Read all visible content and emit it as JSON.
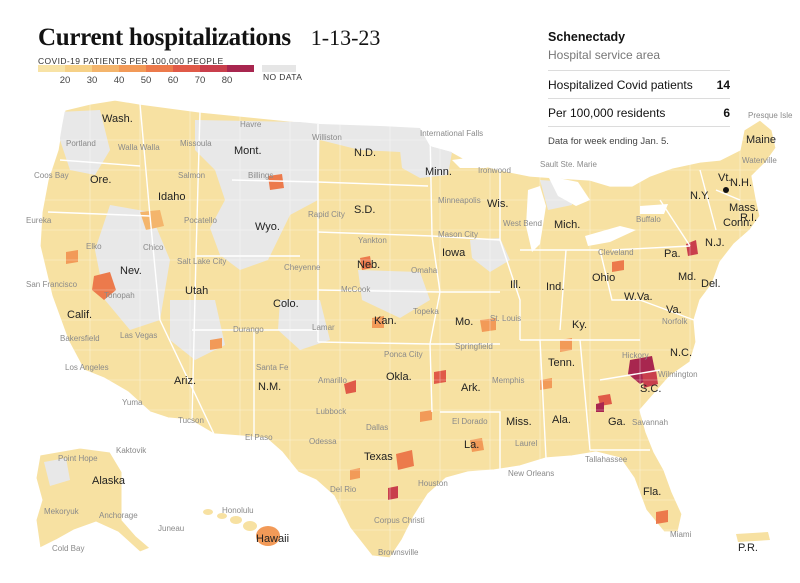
{
  "title": "Current hospitalizations",
  "date": "1-13-23",
  "legend": {
    "title": "COVID-19 PATIENTS PER 100,000 PEOPLE",
    "colors": [
      "#f8e3a6",
      "#f6d187",
      "#f4b56c",
      "#f29a58",
      "#ec7a4c",
      "#e05a48",
      "#c93f4c",
      "#a8264f"
    ],
    "ticks": [
      "20",
      "30",
      "40",
      "50",
      "60",
      "70",
      "80"
    ],
    "no_data_label": "NO DATA",
    "no_data_color": "#e6e6e6"
  },
  "panel": {
    "name": "Schenectady",
    "subtitle": "Hospital service area",
    "rows": [
      {
        "label": "Hospitalized Covid patients",
        "value": "14"
      },
      {
        "label": "Per 100,000 residents",
        "value": "6"
      }
    ],
    "note": "Data for week ending Jan. 5."
  },
  "state_labels": [
    "Wash.",
    "Ore.",
    "Calif.",
    "Nev.",
    "Idaho",
    "Mont.",
    "Wyo.",
    "Utah",
    "Ariz.",
    "Colo.",
    "N.M.",
    "N.D.",
    "S.D.",
    "Neb.",
    "Kan.",
    "Okla.",
    "Texas",
    "Minn.",
    "Iowa",
    "Mo.",
    "Ark.",
    "La.",
    "Wis.",
    "Ill.",
    "Mich.",
    "Ind.",
    "Ohio",
    "Ky.",
    "Tenn.",
    "Miss.",
    "Ala.",
    "Ga.",
    "Fla.",
    "S.C.",
    "N.C.",
    "Va.",
    "W.Va.",
    "Pa.",
    "N.Y.",
    "Md.",
    "Del.",
    "N.J.",
    "Conn.",
    "R.I.",
    "Mass.",
    "Vt.",
    "N.H.",
    "Maine",
    "Alaska",
    "Hawaii",
    "P.R."
  ],
  "city_labels": [
    "Portland",
    "Walla Walla",
    "Missoula",
    "Havre",
    "Williston",
    "International Falls",
    "Presque Isle",
    "Coos Bay",
    "Salmon",
    "Billings",
    "Ironwood",
    "Sault Ste. Marie",
    "Waterville",
    "Eureka",
    "Pocatello",
    "Rapid City",
    "Minneapolis",
    "West Bend",
    "Buffalo",
    "Chico",
    "Elko",
    "Yankton",
    "Mason City",
    "Cleveland",
    "Salt Lake City",
    "Cheyenne",
    "Omaha",
    "San Francisco",
    "Tonopah",
    "McCook",
    "Topeka",
    "St. Louis",
    "Bakersfield",
    "Las Vegas",
    "Durango",
    "Lamar",
    "Springfield",
    "Norfolk",
    "Ponca City",
    "Hickory",
    "Los Angeles",
    "Santa Fe",
    "Amarillo",
    "Memphis",
    "Wilmington",
    "Yuma",
    "Tucson",
    "Lubbock",
    "El Dorado",
    "Savannah",
    "El Paso",
    "Odessa",
    "Dallas",
    "Laurel",
    "Tallahassee",
    "Point Hope",
    "Kaktovik",
    "Honolulu",
    "Juneau",
    "Mekoryuk",
    "Anchorage",
    "Del Rio",
    "Houston",
    "New Orleans",
    "Corpus Christi",
    "Miami",
    "Brownsville",
    "Cold Bay"
  ]
}
